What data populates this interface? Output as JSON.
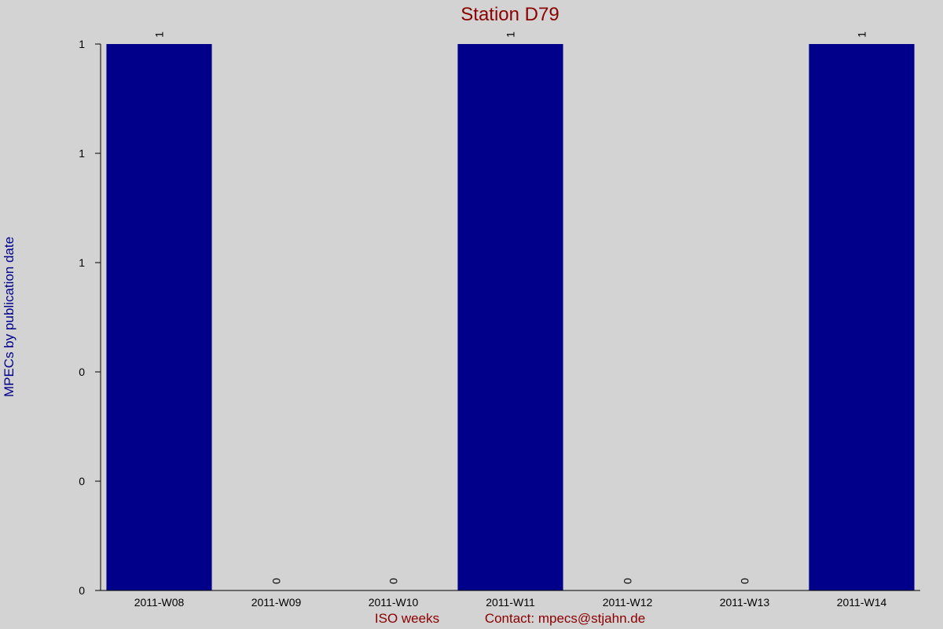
{
  "chart_data": {
    "type": "bar",
    "title": "Station D79",
    "xlabel": "ISO weeks",
    "ylabel": "MPECs by publication date",
    "footer_note": "Contact: mpecs@stjahn.de",
    "categories": [
      "2011-W08",
      "2011-W09",
      "2011-W10",
      "2011-W11",
      "2011-W12",
      "2011-W13",
      "2011-W14"
    ],
    "values": [
      1,
      0,
      0,
      1,
      0,
      0,
      1
    ],
    "ylim": [
      0,
      1
    ],
    "ytick_values": [
      0,
      0.2,
      0.4,
      0.6,
      0.8,
      1
    ],
    "ytick_labels": [
      "0",
      "0",
      "0",
      "1",
      "1",
      "1"
    ],
    "grid": false,
    "colors": {
      "background": "#d3d3d3",
      "bar": "#00008b",
      "title": "#8b0000",
      "ylabel": "#00008b",
      "xlabel": "#8b0000",
      "axis": "#000000",
      "tick_text": "#000000"
    }
  }
}
